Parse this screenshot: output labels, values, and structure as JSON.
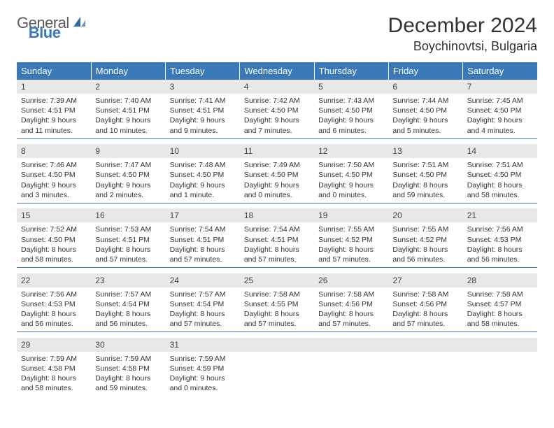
{
  "logo": {
    "text_gray": "General",
    "text_blue": "Blue"
  },
  "title": "December 2024",
  "location": "Boychinovtsi, Bulgaria",
  "colors": {
    "header_bg": "#3a79b7",
    "header_text": "#ffffff",
    "daynum_bg": "#e8e8e8",
    "text": "#333333",
    "logo_gray": "#5a5a5a",
    "logo_blue": "#3a79b7"
  },
  "weekdays": [
    "Sunday",
    "Monday",
    "Tuesday",
    "Wednesday",
    "Thursday",
    "Friday",
    "Saturday"
  ],
  "rows": [
    [
      {
        "n": "1",
        "sr": "7:39 AM",
        "ss": "4:51 PM",
        "dl": "9 hours and 11 minutes."
      },
      {
        "n": "2",
        "sr": "7:40 AM",
        "ss": "4:51 PM",
        "dl": "9 hours and 10 minutes."
      },
      {
        "n": "3",
        "sr": "7:41 AM",
        "ss": "4:51 PM",
        "dl": "9 hours and 9 minutes."
      },
      {
        "n": "4",
        "sr": "7:42 AM",
        "ss": "4:50 PM",
        "dl": "9 hours and 7 minutes."
      },
      {
        "n": "5",
        "sr": "7:43 AM",
        "ss": "4:50 PM",
        "dl": "9 hours and 6 minutes."
      },
      {
        "n": "6",
        "sr": "7:44 AM",
        "ss": "4:50 PM",
        "dl": "9 hours and 5 minutes."
      },
      {
        "n": "7",
        "sr": "7:45 AM",
        "ss": "4:50 PM",
        "dl": "9 hours and 4 minutes."
      }
    ],
    [
      {
        "n": "8",
        "sr": "7:46 AM",
        "ss": "4:50 PM",
        "dl": "9 hours and 3 minutes."
      },
      {
        "n": "9",
        "sr": "7:47 AM",
        "ss": "4:50 PM",
        "dl": "9 hours and 2 minutes."
      },
      {
        "n": "10",
        "sr": "7:48 AM",
        "ss": "4:50 PM",
        "dl": "9 hours and 1 minute."
      },
      {
        "n": "11",
        "sr": "7:49 AM",
        "ss": "4:50 PM",
        "dl": "9 hours and 0 minutes."
      },
      {
        "n": "12",
        "sr": "7:50 AM",
        "ss": "4:50 PM",
        "dl": "9 hours and 0 minutes."
      },
      {
        "n": "13",
        "sr": "7:51 AM",
        "ss": "4:50 PM",
        "dl": "8 hours and 59 minutes."
      },
      {
        "n": "14",
        "sr": "7:51 AM",
        "ss": "4:50 PM",
        "dl": "8 hours and 58 minutes."
      }
    ],
    [
      {
        "n": "15",
        "sr": "7:52 AM",
        "ss": "4:50 PM",
        "dl": "8 hours and 58 minutes."
      },
      {
        "n": "16",
        "sr": "7:53 AM",
        "ss": "4:51 PM",
        "dl": "8 hours and 57 minutes."
      },
      {
        "n": "17",
        "sr": "7:54 AM",
        "ss": "4:51 PM",
        "dl": "8 hours and 57 minutes."
      },
      {
        "n": "18",
        "sr": "7:54 AM",
        "ss": "4:51 PM",
        "dl": "8 hours and 57 minutes."
      },
      {
        "n": "19",
        "sr": "7:55 AM",
        "ss": "4:52 PM",
        "dl": "8 hours and 57 minutes."
      },
      {
        "n": "20",
        "sr": "7:55 AM",
        "ss": "4:52 PM",
        "dl": "8 hours and 56 minutes."
      },
      {
        "n": "21",
        "sr": "7:56 AM",
        "ss": "4:53 PM",
        "dl": "8 hours and 56 minutes."
      }
    ],
    [
      {
        "n": "22",
        "sr": "7:56 AM",
        "ss": "4:53 PM",
        "dl": "8 hours and 56 minutes."
      },
      {
        "n": "23",
        "sr": "7:57 AM",
        "ss": "4:54 PM",
        "dl": "8 hours and 56 minutes."
      },
      {
        "n": "24",
        "sr": "7:57 AM",
        "ss": "4:54 PM",
        "dl": "8 hours and 57 minutes."
      },
      {
        "n": "25",
        "sr": "7:58 AM",
        "ss": "4:55 PM",
        "dl": "8 hours and 57 minutes."
      },
      {
        "n": "26",
        "sr": "7:58 AM",
        "ss": "4:56 PM",
        "dl": "8 hours and 57 minutes."
      },
      {
        "n": "27",
        "sr": "7:58 AM",
        "ss": "4:56 PM",
        "dl": "8 hours and 57 minutes."
      },
      {
        "n": "28",
        "sr": "7:58 AM",
        "ss": "4:57 PM",
        "dl": "8 hours and 58 minutes."
      }
    ],
    [
      {
        "n": "29",
        "sr": "7:59 AM",
        "ss": "4:58 PM",
        "dl": "8 hours and 58 minutes."
      },
      {
        "n": "30",
        "sr": "7:59 AM",
        "ss": "4:58 PM",
        "dl": "8 hours and 59 minutes."
      },
      {
        "n": "31",
        "sr": "7:59 AM",
        "ss": "4:59 PM",
        "dl": "9 hours and 0 minutes."
      },
      null,
      null,
      null,
      null
    ]
  ],
  "labels": {
    "sunrise": "Sunrise:",
    "sunset": "Sunset:",
    "daylight": "Daylight:"
  }
}
